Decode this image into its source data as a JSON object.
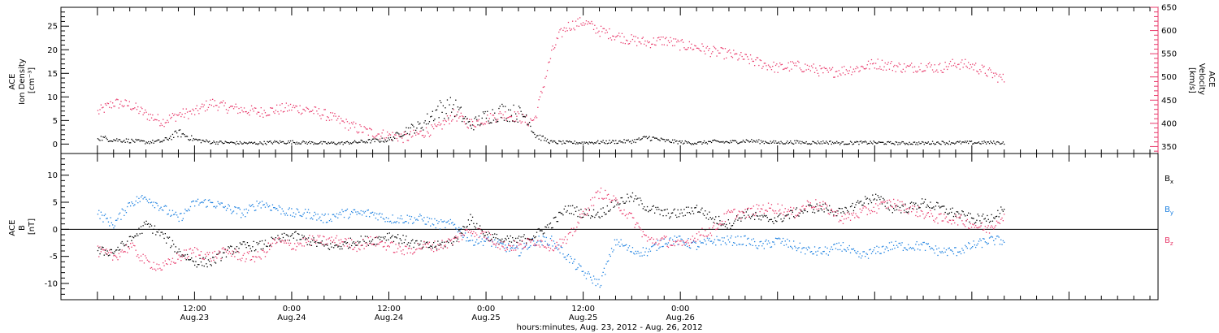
{
  "chart_data": [
    {
      "type": "scatter",
      "panel": "top",
      "ylabel_lines": [
        "ACE",
        "Ion Density",
        "[cm⁻³]"
      ],
      "y2label_lines": [
        "ACE",
        "Velocity",
        "[km/s]"
      ],
      "ylim": [
        -2,
        29
      ],
      "yticks": [
        0,
        5,
        10,
        15,
        20,
        25
      ],
      "y2lim": [
        335,
        650
      ],
      "y2ticks": [
        350,
        400,
        450,
        500,
        550,
        600,
        650
      ],
      "colors": {
        "density": "#000000",
        "velocity": "#e8386a",
        "y2axis": "#e8386a"
      },
      "series": [
        {
          "name": "Ion Density",
          "axis": "left",
          "x": [
            0,
            2,
            4,
            6,
            8,
            10,
            12,
            14,
            16,
            18,
            20,
            22,
            24,
            26,
            28,
            30,
            32,
            34,
            36,
            37,
            38,
            40,
            42,
            44,
            46,
            48,
            50,
            52,
            53,
            54,
            56,
            58,
            60,
            62,
            64,
            66,
            68,
            70,
            72,
            74,
            76,
            78,
            80,
            82,
            84,
            86,
            88,
            90,
            92,
            94,
            96,
            98,
            100,
            102,
            104,
            106,
            108,
            110,
            112
          ],
          "y": [
            1.5,
            1.0,
            0.8,
            0.5,
            0.7,
            2.5,
            1.0,
            0.5,
            0.4,
            0.3,
            0.3,
            0.5,
            0.5,
            0.4,
            0.3,
            0.3,
            0.5,
            0.8,
            1.0,
            2.0,
            3.0,
            4.0,
            7.5,
            8.0,
            4.0,
            6.0,
            7.0,
            6.5,
            6.0,
            2.0,
            0.5,
            0.4,
            0.4,
            0.5,
            0.6,
            0.7,
            1.5,
            0.8,
            0.5,
            0.3,
            0.6,
            0.5,
            0.8,
            0.6,
            0.4,
            0.5,
            0.4,
            0.5,
            0.3,
            0.4,
            0.4,
            0.3,
            0.3,
            0.3,
            0.4,
            0.4,
            0.4,
            0.4,
            0.4
          ]
        },
        {
          "name": "Velocity",
          "axis": "right",
          "x": [
            0,
            2,
            4,
            6,
            8,
            10,
            12,
            14,
            16,
            18,
            20,
            22,
            24,
            26,
            28,
            30,
            32,
            34,
            36,
            38,
            40,
            42,
            44,
            46,
            48,
            50,
            52,
            53,
            54,
            55,
            56,
            57,
            58,
            60,
            62,
            64,
            66,
            68,
            70,
            72,
            74,
            76,
            78,
            80,
            82,
            84,
            86,
            88,
            90,
            92,
            94,
            96,
            98,
            100,
            102,
            104,
            106,
            108,
            110,
            112
          ],
          "y": [
            425,
            445,
            440,
            420,
            405,
            420,
            425,
            445,
            435,
            430,
            425,
            430,
            435,
            430,
            420,
            405,
            390,
            380,
            375,
            370,
            380,
            390,
            420,
            400,
            410,
            420,
            415,
            405,
            410,
            480,
            550,
            590,
            610,
            620,
            600,
            590,
            580,
            575,
            580,
            570,
            565,
            555,
            550,
            540,
            530,
            520,
            525,
            520,
            510,
            515,
            520,
            530,
            525,
            520,
            525,
            520,
            530,
            525,
            510,
            495
          ]
        }
      ]
    },
    {
      "type": "scatter",
      "panel": "bottom",
      "ylabel_lines": [
        "ACE",
        "B",
        "[nT]"
      ],
      "ylim": [
        -13,
        14
      ],
      "yticks": [
        -10,
        -5,
        0,
        5,
        10
      ],
      "zero_line": true,
      "legend_placement": "right",
      "colors": {
        "Bx": "#000000",
        "By": "#1a7fe0",
        "Bz": "#e8386a"
      },
      "series": [
        {
          "name": "B",
          "subscript": "x",
          "x": [
            0,
            2,
            4,
            6,
            8,
            10,
            12,
            14,
            16,
            18,
            20,
            22,
            24,
            26,
            28,
            30,
            32,
            34,
            36,
            38,
            40,
            42,
            44,
            46,
            48,
            50,
            52,
            54,
            56,
            58,
            60,
            62,
            64,
            66,
            68,
            70,
            72,
            74,
            76,
            78,
            80,
            82,
            84,
            86,
            88,
            90,
            92,
            94,
            96,
            98,
            100,
            102,
            104,
            106,
            108,
            110,
            112
          ],
          "y": [
            -4,
            -4,
            -2,
            1,
            -1,
            -4,
            -6,
            -6,
            -4,
            -3,
            -3,
            -2,
            -1,
            -2,
            -3,
            -3,
            -2,
            -2,
            -1,
            -2,
            -3,
            -3,
            -2,
            2,
            -1,
            -2,
            -2,
            -1,
            1,
            4,
            3,
            3,
            5,
            6,
            4,
            3,
            3,
            4,
            2,
            1,
            3,
            2,
            2,
            3,
            4,
            4,
            3,
            5,
            6,
            4,
            4,
            5,
            4,
            3,
            2,
            2,
            4
          ]
        },
        {
          "name": "B",
          "subscript": "y",
          "x": [
            0,
            2,
            4,
            6,
            8,
            10,
            12,
            14,
            16,
            18,
            20,
            22,
            24,
            26,
            28,
            30,
            32,
            34,
            36,
            38,
            40,
            42,
            44,
            46,
            48,
            50,
            52,
            54,
            56,
            58,
            60,
            62,
            64,
            66,
            68,
            70,
            72,
            74,
            76,
            78,
            80,
            82,
            84,
            86,
            88,
            90,
            92,
            94,
            96,
            98,
            100,
            102,
            104,
            106,
            108,
            110,
            112
          ],
          "y": [
            3,
            1,
            5,
            6,
            4,
            2,
            5,
            5,
            4,
            3,
            5,
            4,
            3,
            3,
            2,
            3,
            3,
            3,
            2,
            2,
            2,
            1,
            1,
            -2,
            -2,
            -3,
            -4,
            -2,
            -2,
            -5,
            -8,
            -10,
            -2,
            -4,
            -4,
            -2,
            -2,
            -3,
            -2,
            -2,
            -2,
            -3,
            -2,
            -3,
            -4,
            -4,
            -3,
            -5,
            -4,
            -3,
            -3,
            -3,
            -4,
            -4,
            -3,
            -2,
            -2
          ]
        },
        {
          "name": "B",
          "subscript": "z",
          "x": [
            0,
            2,
            4,
            6,
            8,
            10,
            12,
            14,
            16,
            18,
            20,
            22,
            24,
            26,
            28,
            30,
            32,
            34,
            36,
            38,
            40,
            42,
            44,
            46,
            48,
            50,
            52,
            54,
            56,
            58,
            60,
            62,
            64,
            66,
            68,
            70,
            72,
            74,
            76,
            78,
            80,
            82,
            84,
            86,
            88,
            90,
            92,
            94,
            96,
            98,
            100,
            102,
            104,
            106,
            108,
            110,
            112
          ],
          "y": [
            -4,
            -5,
            -3,
            -6,
            -7,
            -5,
            -4,
            -5,
            -4,
            -5,
            -5,
            -2,
            -3,
            -2,
            -2,
            -2,
            -3,
            -2,
            -3,
            -4,
            -3,
            -3,
            -2,
            0,
            -1,
            -3,
            -3,
            -2,
            -3,
            -2,
            3,
            7,
            5,
            2,
            -2,
            -2,
            -3,
            -1,
            0,
            3,
            3,
            4,
            4,
            3,
            5,
            4,
            2,
            3,
            4,
            5,
            4,
            3,
            2,
            2,
            1,
            0,
            3
          ]
        }
      ]
    }
  ],
  "x_axis": {
    "range_hours": [
      -4.5,
      131
    ],
    "major_ticks": [
      {
        "hour": 12,
        "time": "12:00",
        "date": "Aug.23"
      },
      {
        "hour": 24,
        "time": "0:00",
        "date": "Aug.24"
      },
      {
        "hour": 36,
        "time": "12:00",
        "date": "Aug.24"
      },
      {
        "hour": 48,
        "time": "0:00",
        "date": "Aug.25"
      },
      {
        "hour": 60,
        "time": "12:00",
        "date": "Aug.25"
      },
      {
        "hour": 72,
        "time": "0:00",
        "date": "Aug.26"
      }
    ],
    "title": "hours:minutes, Aug. 23, 2012 - Aug. 26, 2012"
  }
}
